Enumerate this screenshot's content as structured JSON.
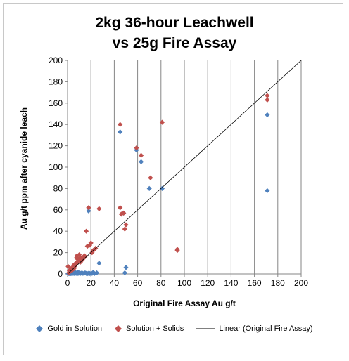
{
  "chart_data": {
    "type": "scatter",
    "title": "2kg 36-hour Leachwell vs 25g Fire Assay",
    "title_lines": [
      "2kg 36-hour Leachwell",
      "vs 25g Fire Assay"
    ],
    "xlabel": "Original Fire Assay Au g/t",
    "ylabel": "Au g/t ppm after cyanide leach",
    "xlim": [
      0,
      200
    ],
    "ylim": [
      0,
      200
    ],
    "xticks": [
      0,
      20,
      40,
      60,
      80,
      100,
      120,
      140,
      160,
      180,
      200
    ],
    "yticks": [
      0,
      20,
      40,
      60,
      80,
      100,
      120,
      140,
      160,
      180,
      200
    ],
    "grid": "vertical major gridlines",
    "legend_position": "bottom",
    "series": [
      {
        "name": "Gold in Solution",
        "color": "#4f81bd",
        "marker": "diamond",
        "points": [
          [
            0.5,
            0.3
          ],
          [
            1,
            0.5
          ],
          [
            1.5,
            0.4
          ],
          [
            2,
            0.6
          ],
          [
            2.5,
            0.5
          ],
          [
            3,
            0.3
          ],
          [
            3.5,
            0.8
          ],
          [
            4,
            0.5
          ],
          [
            4.5,
            0.6
          ],
          [
            5,
            1
          ],
          [
            5.5,
            0.4
          ],
          [
            6,
            0.8
          ],
          [
            6.5,
            0.5
          ],
          [
            7,
            1.2
          ],
          [
            7.5,
            0.6
          ],
          [
            8,
            0.9
          ],
          [
            8.5,
            0.4
          ],
          [
            9,
            1.5
          ],
          [
            9.5,
            0.6
          ],
          [
            10,
            1
          ],
          [
            11,
            0.5
          ],
          [
            12,
            0.8
          ],
          [
            13,
            0.6
          ],
          [
            14,
            0.4
          ],
          [
            15,
            1
          ],
          [
            16,
            0.5
          ],
          [
            17,
            0.3
          ],
          [
            18,
            0.6
          ],
          [
            19,
            0.4
          ],
          [
            20,
            0.3
          ],
          [
            21,
            0.5
          ],
          [
            22,
            1.5
          ],
          [
            23,
            0.4
          ],
          [
            25,
            1
          ],
          [
            27,
            10
          ],
          [
            18,
            59
          ],
          [
            45,
            133
          ],
          [
            48,
            57
          ],
          [
            49,
            1
          ],
          [
            50,
            6
          ],
          [
            59,
            116
          ],
          [
            63,
            105
          ],
          [
            70,
            80
          ],
          [
            81,
            80
          ],
          [
            171,
            149
          ],
          [
            171,
            78
          ]
        ]
      },
      {
        "name": "Solution + Solids",
        "color": "#c0504d",
        "marker": "diamond",
        "points": [
          [
            0.5,
            7
          ],
          [
            1,
            1
          ],
          [
            1.5,
            3
          ],
          [
            2,
            2
          ],
          [
            2.5,
            4
          ],
          [
            3,
            5
          ],
          [
            3.5,
            3
          ],
          [
            4,
            4
          ],
          [
            4.5,
            6
          ],
          [
            5,
            8
          ],
          [
            5.5,
            5
          ],
          [
            6,
            7
          ],
          [
            6.5,
            9
          ],
          [
            7,
            10
          ],
          [
            7.5,
            15
          ],
          [
            8,
            17
          ],
          [
            8.5,
            11
          ],
          [
            9,
            12
          ],
          [
            9.5,
            14
          ],
          [
            10,
            18
          ],
          [
            10.5,
            13
          ],
          [
            11,
            11
          ],
          [
            11.5,
            15
          ],
          [
            12,
            14
          ],
          [
            12.5,
            13
          ],
          [
            13,
            14
          ],
          [
            13.5,
            16
          ],
          [
            14,
            15
          ],
          [
            14.5,
            17
          ],
          [
            15,
            16
          ],
          [
            16,
            40
          ],
          [
            17,
            26
          ],
          [
            18,
            62
          ],
          [
            19,
            27
          ],
          [
            20,
            29
          ],
          [
            21,
            20
          ],
          [
            22,
            22
          ],
          [
            23,
            23
          ],
          [
            24,
            24
          ],
          [
            27,
            61
          ],
          [
            45,
            62
          ],
          [
            45,
            140
          ],
          [
            46,
            56
          ],
          [
            48,
            57
          ],
          [
            49,
            42
          ],
          [
            50,
            46
          ],
          [
            59,
            118
          ],
          [
            63,
            111
          ],
          [
            71,
            90
          ],
          [
            81,
            142
          ],
          [
            94,
            22
          ],
          [
            94,
            23
          ],
          [
            171,
            167
          ],
          [
            171,
            163
          ]
        ]
      }
    ],
    "trendline": {
      "name": "Linear (Original Fire Assay)",
      "color": "#000000",
      "from": [
        0,
        0
      ],
      "to": [
        200,
        200
      ]
    }
  },
  "legend": {
    "items": [
      "Gold in Solution",
      "Solution + Solids",
      "Linear (Original Fire Assay)"
    ]
  }
}
